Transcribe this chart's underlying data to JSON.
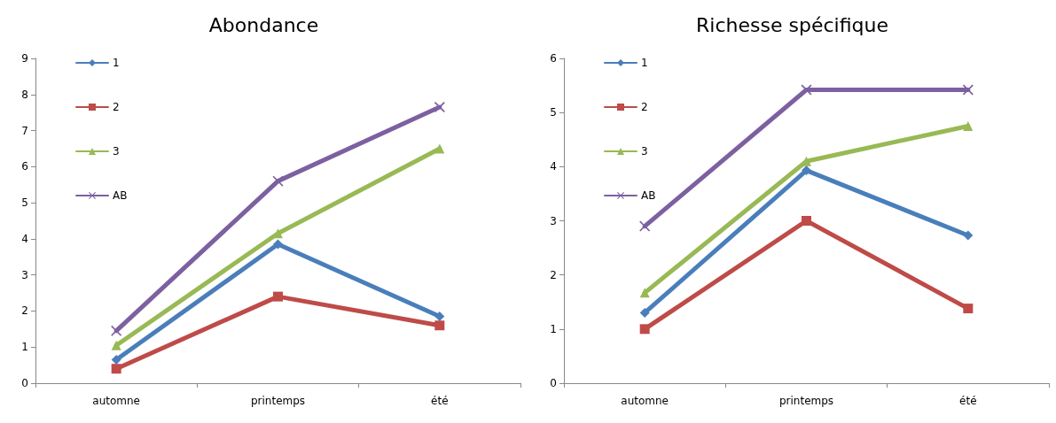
{
  "chart_data": [
    {
      "type": "line",
      "title": "Abondance",
      "categories": [
        "automne",
        "printemps",
        "été"
      ],
      "series": [
        {
          "name": "1",
          "color": "#4a7ebb",
          "marker": "diamond",
          "values": [
            0.65,
            3.85,
            1.85
          ]
        },
        {
          "name": "2",
          "color": "#be4b48",
          "marker": "square",
          "values": [
            0.4,
            2.4,
            1.6
          ]
        },
        {
          "name": "3",
          "color": "#98b954",
          "marker": "triangle",
          "values": [
            1.05,
            4.15,
            6.5
          ]
        },
        {
          "name": "AB",
          "color": "#7d60a0",
          "marker": "cross",
          "values": [
            1.45,
            5.6,
            7.65
          ]
        }
      ],
      "ylim": [
        0,
        9
      ],
      "yticks": [
        0,
        1,
        2,
        3,
        4,
        5,
        6,
        7,
        8,
        9
      ],
      "grid": false,
      "legend": "top left"
    },
    {
      "type": "line",
      "title": "Richesse spécifique",
      "categories": [
        "automne",
        "printemps",
        "été"
      ],
      "series": [
        {
          "name": "1",
          "color": "#4a7ebb",
          "marker": "diamond",
          "values": [
            1.3,
            3.93,
            2.73
          ]
        },
        {
          "name": "2",
          "color": "#be4b48",
          "marker": "square",
          "values": [
            1.0,
            3.0,
            1.38
          ]
        },
        {
          "name": "3",
          "color": "#98b954",
          "marker": "triangle",
          "values": [
            1.67,
            4.1,
            4.75
          ]
        },
        {
          "name": "AB",
          "color": "#7d60a0",
          "marker": "cross",
          "values": [
            2.9,
            5.42,
            5.42
          ]
        }
      ],
      "ylim": [
        0,
        6
      ],
      "yticks": [
        0,
        1,
        2,
        3,
        4,
        5,
        6
      ],
      "grid": false,
      "legend": "top left"
    }
  ]
}
